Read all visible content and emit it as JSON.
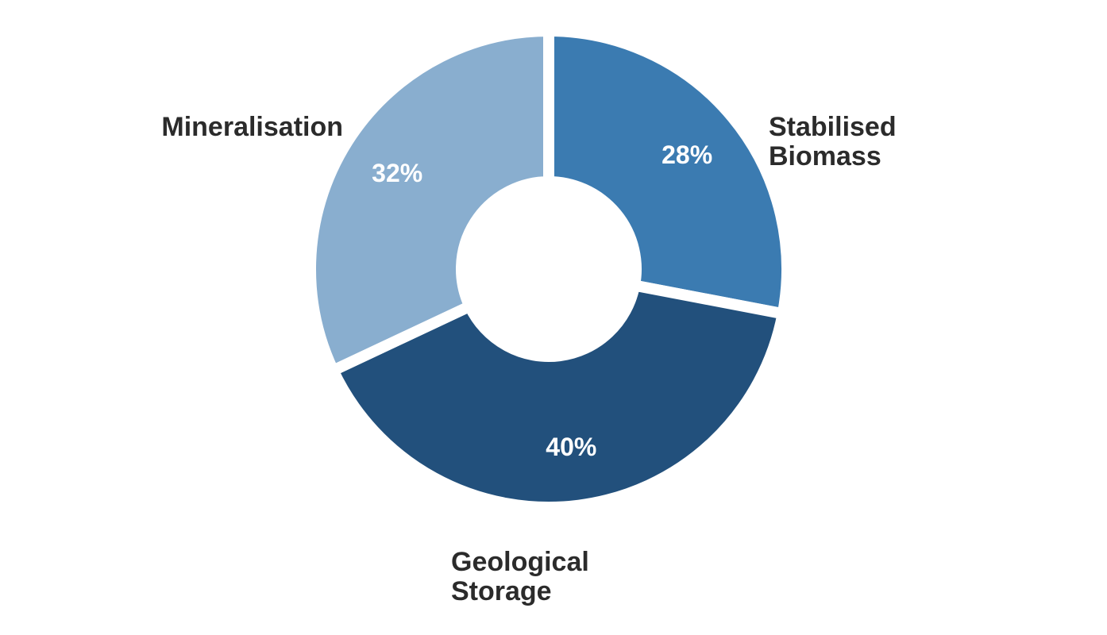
{
  "chart_data": {
    "type": "pie",
    "variant": "donut",
    "categories": [
      "Stabilised Biomass",
      "Geological Storage",
      "Mineralisation"
    ],
    "values": [
      28,
      40,
      32
    ],
    "value_labels": [
      "28%",
      "40%",
      "32%"
    ],
    "category_label_lines": [
      [
        "Stabilised",
        "Biomass"
      ],
      [
        "Geological",
        "Storage"
      ],
      [
        "Mineralisation"
      ]
    ],
    "colors": [
      "#3b7bb1",
      "#22507c",
      "#89aecf"
    ],
    "start": "12 o'clock",
    "direction": "clockwise",
    "legend": "none"
  }
}
